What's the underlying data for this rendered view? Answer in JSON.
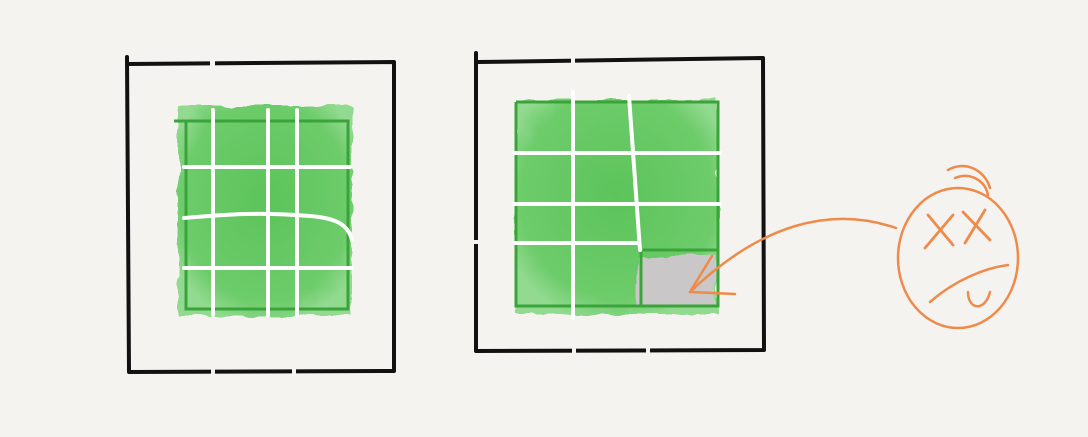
{
  "colors": {
    "background": "#f4f3f0",
    "frame": "#111111",
    "fill_green": "#5cc55a",
    "fill_green_light": "#86d884",
    "grid_line": "#ffffff",
    "outline_green": "#3aa43a",
    "broken_cell": "#c8c6c6",
    "annotation": "#ef8a4a"
  },
  "panels": [
    {
      "name": "left-panel",
      "state": "text-wrapping-line"
    },
    {
      "name": "right-panel",
      "state": "misaligned-column-with-gap"
    }
  ],
  "annotation": {
    "face": "dizzy-face",
    "eyes": "XX",
    "mouth": "U"
  }
}
